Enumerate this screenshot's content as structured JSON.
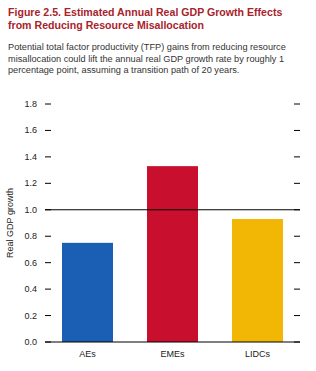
{
  "chart_data": {
    "type": "bar",
    "title": "Figure 2.5. Estimated Annual Real GDP Growth Effects from Reducing Resource Misallocation",
    "subtitle": "Potential total factor productivity (TFP) gains from reducing resource misallocation could lift the annual real GDP growth rate by roughly 1 percentage point, assuming a transition path of 20 years.",
    "y_label": "Real GDP growth",
    "categories": [
      "AEs",
      "EMEs",
      "LIDCs"
    ],
    "values": [
      0.75,
      1.33,
      0.93
    ],
    "colors": [
      "#1a5fb4",
      "#c8102e",
      "#f2b705"
    ],
    "reference_line": 1.0,
    "ylim": [
      0,
      1.8
    ],
    "yticks": [
      {
        "value": 0,
        "label": "0.0"
      },
      0.2,
      0.4,
      0.6,
      0.8,
      {
        "value": 1,
        "label": "1.0"
      },
      1.2,
      1.4,
      1.6,
      1.8
    ],
    "grid": false
  }
}
